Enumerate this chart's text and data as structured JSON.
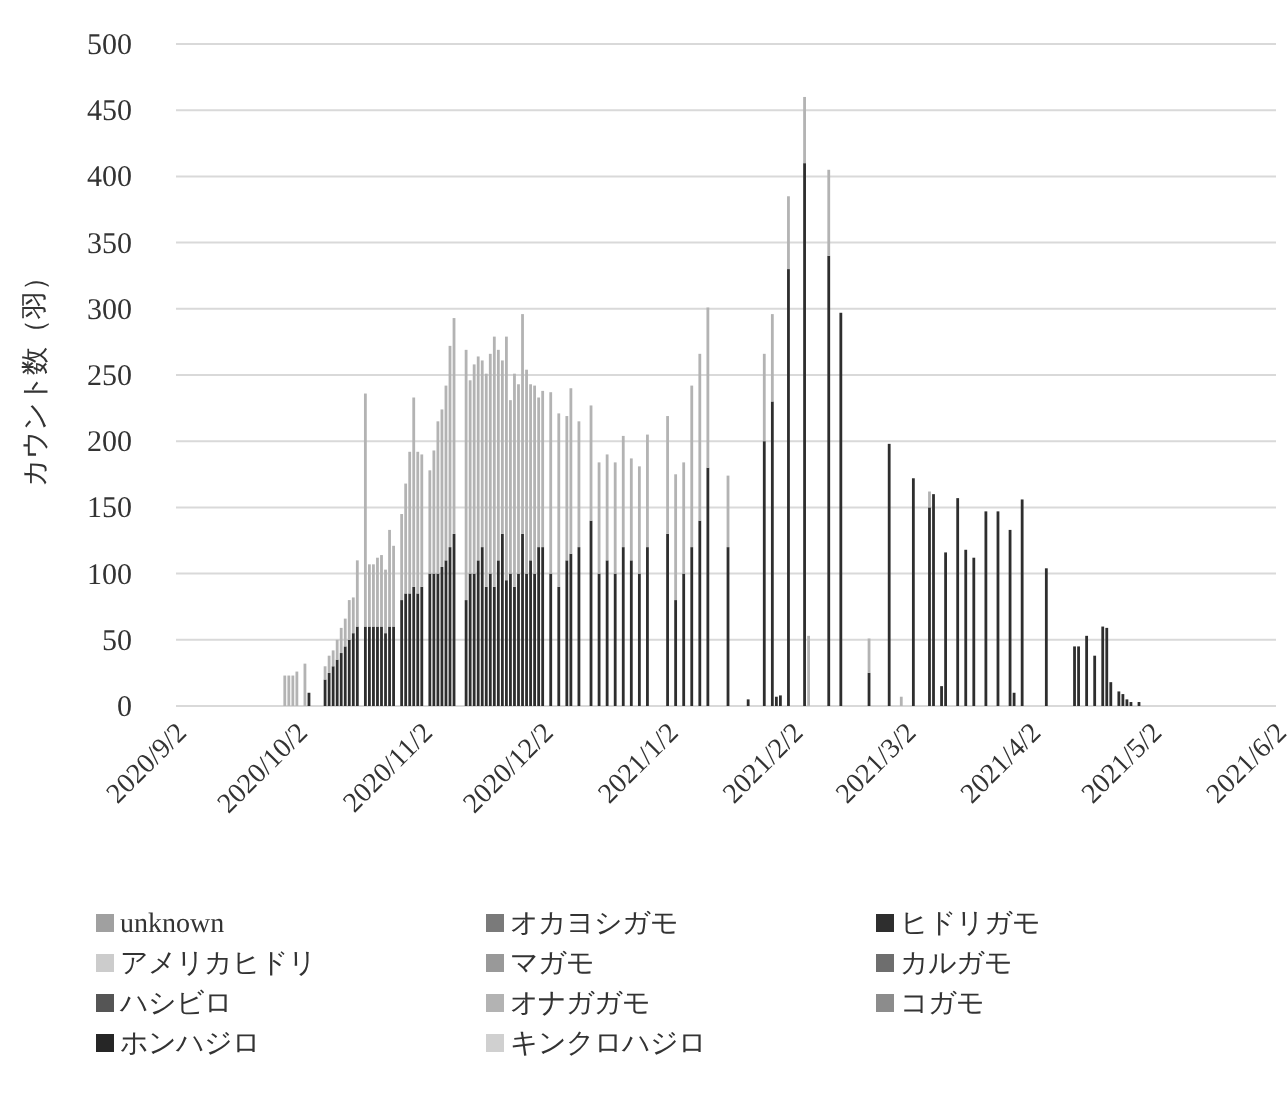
{
  "chart_data": {
    "type": "bar",
    "stacked": true,
    "ylabel": "カウント数（羽）",
    "grid": "y",
    "legend": "bottom",
    "xlim": [
      "2020-09-02",
      "2021-06-02"
    ],
    "xticks": [
      {
        "value": "2020-09-02",
        "label": "2020/9/2"
      },
      {
        "value": "2020-10-02",
        "label": "2020/10/2"
      },
      {
        "value": "2020-11-02",
        "label": "2020/11/2"
      },
      {
        "value": "2020-12-02",
        "label": "2020/12/2"
      },
      {
        "value": "2021-01-02",
        "label": "2021/1/2"
      },
      {
        "value": "2021-02-02",
        "label": "2021/2/2"
      },
      {
        "value": "2021-03-02",
        "label": "2021/3/2"
      },
      {
        "value": "2021-04-02",
        "label": "2021/4/2"
      },
      {
        "value": "2021-05-02",
        "label": "2021/5/2"
      },
      {
        "value": "2021-06-02",
        "label": "2021/6/2"
      }
    ],
    "ylim": [
      0,
      500
    ],
    "yticks": [
      0,
      50,
      100,
      150,
      200,
      250,
      300,
      350,
      400,
      450,
      500
    ],
    "x": [
      "2020-09-29",
      "2020-09-30",
      "2020-10-01",
      "2020-10-02",
      "2020-10-04",
      "2020-10-05",
      "2020-10-09",
      "2020-10-10",
      "2020-10-11",
      "2020-10-12",
      "2020-10-13",
      "2020-10-14",
      "2020-10-15",
      "2020-10-16",
      "2020-10-17",
      "2020-10-19",
      "2020-10-20",
      "2020-10-21",
      "2020-10-22",
      "2020-10-23",
      "2020-10-24",
      "2020-10-25",
      "2020-10-26",
      "2020-10-28",
      "2020-10-29",
      "2020-10-30",
      "2020-10-31",
      "2020-11-01",
      "2020-11-02",
      "2020-11-04",
      "2020-11-05",
      "2020-11-06",
      "2020-11-07",
      "2020-11-08",
      "2020-11-09",
      "2020-11-10",
      "2020-11-13",
      "2020-11-14",
      "2020-11-15",
      "2020-11-16",
      "2020-11-17",
      "2020-11-18",
      "2020-11-19",
      "2020-11-20",
      "2020-11-21",
      "2020-11-22",
      "2020-11-23",
      "2020-11-24",
      "2020-11-25",
      "2020-11-26",
      "2020-11-27",
      "2020-11-28",
      "2020-11-29",
      "2020-11-30",
      "2020-12-01",
      "2020-12-02",
      "2020-12-04",
      "2020-12-06",
      "2020-12-08",
      "2020-12-09",
      "2020-12-11",
      "2020-12-14",
      "2020-12-16",
      "2020-12-18",
      "2020-12-20",
      "2020-12-22",
      "2020-12-24",
      "2020-12-26",
      "2020-12-28",
      "2021-01-02",
      "2021-01-04",
      "2021-01-06",
      "2021-01-08",
      "2021-01-10",
      "2021-01-12",
      "2021-01-17",
      "2021-01-22",
      "2021-01-26",
      "2021-01-28",
      "2021-01-29",
      "2021-01-30",
      "2021-02-01",
      "2021-02-05",
      "2021-02-06",
      "2021-02-11",
      "2021-02-14",
      "2021-02-21",
      "2021-02-26",
      "2021-03-01",
      "2021-03-04",
      "2021-03-08",
      "2021-03-09",
      "2021-03-11",
      "2021-03-12",
      "2021-03-15",
      "2021-03-17",
      "2021-03-19",
      "2021-03-22",
      "2021-03-25",
      "2021-03-28",
      "2021-03-29",
      "2021-03-31",
      "2021-04-06",
      "2021-04-13",
      "2021-04-14",
      "2021-04-16",
      "2021-04-18",
      "2021-04-20",
      "2021-04-21",
      "2021-04-22",
      "2021-04-24",
      "2021-04-25",
      "2021-04-26",
      "2021-04-27",
      "2021-04-29"
    ],
    "series": [
      {
        "name": "unknown",
        "color": "#a0a0a0",
        "values": [
          null,
          null,
          null,
          null,
          null,
          null,
          null,
          null,
          null,
          null,
          null,
          null,
          null,
          null,
          null,
          null,
          null,
          null,
          null,
          null,
          null,
          null,
          null,
          null,
          null,
          null,
          null,
          null,
          null,
          null,
          null,
          null,
          null,
          null,
          null,
          null,
          null,
          null,
          null,
          null,
          null,
          null,
          null,
          null,
          null,
          null,
          null,
          null,
          null,
          null,
          null,
          null,
          null,
          null,
          null,
          null,
          null,
          null,
          null,
          null,
          null,
          null,
          null,
          null,
          null,
          null,
          null,
          null,
          null,
          null,
          null,
          null,
          null,
          null,
          null,
          null,
          null,
          null,
          null,
          null,
          null,
          null,
          null,
          null,
          null,
          null,
          null,
          null,
          null,
          null,
          null,
          null,
          null,
          null,
          null,
          null,
          null,
          null,
          null,
          null,
          null,
          null,
          null,
          null,
          null,
          null,
          null,
          null,
          null,
          null,
          null,
          null,
          null,
          null,
          null
        ]
      },
      {
        "name": "オカヨシガモ",
        "color": "#7a7a7a",
        "values": [
          null,
          null,
          null,
          null,
          null,
          null,
          null,
          null,
          null,
          null,
          null,
          null,
          null,
          null,
          null,
          null,
          null,
          null,
          null,
          null,
          null,
          null,
          null,
          null,
          null,
          null,
          null,
          null,
          null,
          null,
          null,
          null,
          null,
          null,
          null,
          null,
          null,
          null,
          null,
          null,
          null,
          null,
          null,
          null,
          null,
          null,
          null,
          null,
          null,
          null,
          null,
          null,
          null,
          null,
          null,
          null,
          null,
          null,
          null,
          null,
          null,
          null,
          null,
          null,
          null,
          null,
          null,
          null,
          null,
          null,
          null,
          null,
          null,
          null,
          null,
          null,
          null,
          null,
          null,
          null,
          null,
          null,
          null,
          null,
          null,
          null,
          null,
          null,
          null,
          null,
          null,
          null,
          null,
          null,
          null,
          null,
          null,
          null,
          null,
          null,
          null,
          null,
          null,
          null,
          null,
          null,
          null,
          null,
          null,
          null,
          null,
          null,
          null,
          null,
          null
        ]
      },
      {
        "name": "ヒドリガモ",
        "color": "#2e2e2e",
        "values": [
          0,
          0,
          0,
          0,
          0,
          10,
          20,
          25,
          30,
          35,
          40,
          45,
          50,
          55,
          60,
          60,
          60,
          60,
          60,
          60,
          55,
          60,
          60,
          80,
          85,
          85,
          90,
          85,
          90,
          100,
          100,
          100,
          105,
          110,
          120,
          130,
          80,
          100,
          100,
          110,
          120,
          90,
          100,
          90,
          110,
          130,
          95,
          100,
          90,
          100,
          130,
          100,
          110,
          100,
          120,
          120,
          100,
          90,
          110,
          115,
          120,
          140,
          100,
          110,
          100,
          120,
          110,
          100,
          120,
          130,
          80,
          100,
          120,
          140,
          180,
          120,
          5,
          200,
          230,
          7,
          8,
          330,
          410,
          0,
          340,
          297,
          25,
          198,
          0,
          172,
          150,
          160,
          15,
          116,
          157,
          118,
          112,
          147,
          147,
          133,
          10,
          156,
          104,
          45,
          45,
          53,
          38,
          60,
          59,
          18,
          11,
          9,
          5,
          3,
          3
        ]
      },
      {
        "name": "アメリカヒドリ",
        "color": "#cccccc",
        "values": [
          null,
          null,
          null,
          null,
          null,
          null,
          null,
          null,
          null,
          null,
          null,
          null,
          null,
          null,
          null,
          null,
          null,
          null,
          null,
          null,
          null,
          null,
          null,
          null,
          null,
          null,
          null,
          null,
          null,
          null,
          null,
          null,
          null,
          null,
          null,
          null,
          null,
          null,
          null,
          null,
          null,
          null,
          null,
          null,
          null,
          null,
          null,
          null,
          null,
          null,
          null,
          null,
          null,
          null,
          null,
          null,
          null,
          null,
          null,
          null,
          null,
          null,
          null,
          null,
          null,
          null,
          null,
          null,
          null,
          null,
          null,
          null,
          null,
          null,
          null,
          null,
          null,
          null,
          null,
          null,
          null,
          null,
          null,
          null,
          null,
          null,
          null,
          null,
          null,
          null,
          null,
          null,
          null,
          null,
          null,
          null,
          null,
          null,
          null,
          null,
          null,
          null,
          null,
          null,
          null,
          null,
          null,
          null,
          null,
          null,
          null,
          null,
          null,
          null,
          null
        ]
      },
      {
        "name": "マガモ",
        "color": "#999999",
        "values": [
          null,
          null,
          null,
          null,
          null,
          null,
          null,
          null,
          null,
          null,
          null,
          null,
          null,
          null,
          null,
          null,
          null,
          null,
          null,
          null,
          null,
          null,
          null,
          null,
          null,
          null,
          null,
          null,
          null,
          null,
          null,
          null,
          null,
          null,
          null,
          null,
          null,
          null,
          null,
          null,
          null,
          null,
          null,
          null,
          null,
          null,
          null,
          null,
          null,
          null,
          null,
          null,
          null,
          null,
          null,
          null,
          null,
          null,
          null,
          null,
          null,
          null,
          null,
          null,
          null,
          null,
          null,
          null,
          null,
          null,
          null,
          null,
          null,
          null,
          null,
          null,
          null,
          null,
          null,
          null,
          null,
          null,
          null,
          null,
          null,
          null,
          null,
          null,
          null,
          null,
          null,
          null,
          null,
          null,
          null,
          null,
          null,
          null,
          null,
          null,
          null,
          null,
          null,
          null,
          null,
          null,
          null,
          null,
          null,
          null,
          null,
          null,
          null,
          null,
          null
        ]
      },
      {
        "name": "カルガモ",
        "color": "#6e6e6e",
        "values": [
          null,
          null,
          null,
          null,
          null,
          null,
          null,
          null,
          null,
          null,
          null,
          null,
          null,
          null,
          null,
          null,
          null,
          null,
          null,
          null,
          null,
          null,
          null,
          null,
          null,
          null,
          null,
          null,
          null,
          null,
          null,
          null,
          null,
          null,
          null,
          null,
          null,
          null,
          null,
          null,
          null,
          null,
          null,
          null,
          null,
          null,
          null,
          null,
          null,
          null,
          null,
          null,
          null,
          null,
          null,
          null,
          null,
          null,
          null,
          null,
          null,
          null,
          null,
          null,
          null,
          null,
          null,
          null,
          null,
          null,
          null,
          null,
          null,
          null,
          null,
          null,
          null,
          null,
          null,
          null,
          null,
          null,
          null,
          null,
          null,
          null,
          null,
          null,
          null,
          null,
          null,
          null,
          null,
          null,
          null,
          null,
          null,
          null,
          null,
          null,
          null,
          null,
          null,
          null,
          null,
          null,
          null,
          null,
          null,
          null,
          null,
          null,
          null,
          null,
          null
        ]
      },
      {
        "name": "ハシビロ",
        "color": "#555555",
        "values": [
          null,
          null,
          null,
          null,
          null,
          null,
          null,
          null,
          null,
          null,
          null,
          null,
          null,
          null,
          null,
          null,
          null,
          null,
          null,
          null,
          null,
          null,
          null,
          null,
          null,
          null,
          null,
          null,
          null,
          null,
          null,
          null,
          null,
          null,
          null,
          null,
          null,
          null,
          null,
          null,
          null,
          null,
          null,
          null,
          null,
          null,
          null,
          null,
          null,
          null,
          null,
          null,
          null,
          null,
          null,
          null,
          null,
          null,
          null,
          null,
          null,
          null,
          null,
          null,
          null,
          null,
          null,
          null,
          null,
          null,
          null,
          null,
          null,
          null,
          null,
          null,
          null,
          null,
          null,
          null,
          null,
          null,
          null,
          null,
          null,
          null,
          null,
          null,
          null,
          null,
          null,
          null,
          null,
          null,
          null,
          null,
          null,
          null,
          null,
          null,
          null,
          null,
          null,
          null,
          null,
          null,
          null,
          null,
          null,
          null,
          null,
          null,
          null,
          null,
          null
        ]
      },
      {
        "name": "オナガガモ",
        "color": "#b3b3b3",
        "values": [
          23,
          23,
          23,
          26,
          32,
          0,
          10,
          13,
          12,
          15,
          19,
          21,
          30,
          27,
          50,
          176,
          47,
          47,
          52,
          54,
          48,
          73,
          61,
          65,
          83,
          107,
          143,
          107,
          100,
          78,
          93,
          115,
          119,
          132,
          152,
          163,
          189,
          146,
          158,
          154,
          141,
          161,
          166,
          189,
          159,
          131,
          184,
          131,
          161,
          143,
          166,
          154,
          133,
          142,
          113,
          118,
          137,
          131,
          109,
          125,
          95,
          87,
          84,
          80,
          84,
          84,
          77,
          81,
          85,
          89,
          95,
          84,
          122,
          126,
          121,
          54,
          0,
          66,
          66,
          0,
          0,
          55,
          50,
          53,
          65,
          0,
          26,
          0,
          7,
          0,
          12,
          0,
          0,
          0,
          0,
          0,
          0,
          0,
          0,
          0,
          0,
          0,
          0,
          0,
          0,
          0,
          0,
          0,
          0,
          0,
          0,
          0,
          0,
          0,
          0
        ]
      },
      {
        "name": "コガモ",
        "color": "#8c8c8c",
        "values": [
          null,
          null,
          null,
          null,
          null,
          null,
          null,
          null,
          null,
          null,
          null,
          null,
          null,
          null,
          null,
          null,
          null,
          null,
          null,
          null,
          null,
          null,
          null,
          null,
          null,
          null,
          null,
          null,
          null,
          null,
          null,
          null,
          null,
          null,
          null,
          null,
          null,
          null,
          null,
          null,
          null,
          null,
          null,
          null,
          null,
          null,
          null,
          null,
          null,
          null,
          null,
          null,
          null,
          null,
          null,
          null,
          null,
          null,
          null,
          null,
          null,
          null,
          null,
          null,
          null,
          null,
          null,
          null,
          null,
          null,
          null,
          null,
          null,
          null,
          null,
          null,
          null,
          null,
          null,
          null,
          null,
          null,
          null,
          null,
          null,
          null,
          null,
          null,
          null,
          null,
          null,
          null,
          null,
          null,
          null,
          null,
          null,
          null,
          null,
          null,
          null,
          null,
          null,
          null,
          null,
          null,
          null,
          null,
          null,
          null,
          null,
          null,
          null,
          null,
          null
        ]
      },
      {
        "name": "ホンハジロ",
        "color": "#262626",
        "values": [
          null,
          null,
          null,
          null,
          null,
          null,
          null,
          null,
          null,
          null,
          null,
          null,
          null,
          null,
          null,
          null,
          null,
          null,
          null,
          null,
          null,
          null,
          null,
          null,
          null,
          null,
          null,
          null,
          null,
          null,
          null,
          null,
          null,
          null,
          null,
          null,
          null,
          null,
          null,
          null,
          null,
          null,
          null,
          null,
          null,
          null,
          null,
          null,
          null,
          null,
          null,
          null,
          null,
          null,
          null,
          null,
          null,
          null,
          null,
          null,
          null,
          null,
          null,
          null,
          null,
          null,
          null,
          null,
          null,
          null,
          null,
          null,
          null,
          null,
          null,
          null,
          null,
          null,
          null,
          null,
          null,
          null,
          null,
          null,
          null,
          null,
          null,
          null,
          null,
          null,
          null,
          null,
          null,
          null,
          null,
          null,
          null,
          null,
          null,
          null,
          null,
          null,
          null,
          null,
          null,
          null,
          null,
          null,
          null,
          null,
          null,
          null,
          null,
          null,
          null
        ]
      },
      {
        "name": "キンクロハジロ",
        "color": "#d0d0d0",
        "values": [
          null,
          null,
          null,
          null,
          null,
          null,
          null,
          null,
          null,
          null,
          null,
          null,
          null,
          null,
          null,
          null,
          null,
          null,
          null,
          null,
          null,
          null,
          null,
          null,
          null,
          null,
          null,
          null,
          null,
          null,
          null,
          null,
          null,
          null,
          null,
          null,
          null,
          null,
          null,
          null,
          null,
          null,
          null,
          null,
          null,
          null,
          null,
          null,
          null,
          null,
          null,
          null,
          null,
          null,
          null,
          null,
          null,
          null,
          null,
          null,
          null,
          null,
          null,
          null,
          null,
          null,
          null,
          null,
          null,
          null,
          null,
          null,
          null,
          null,
          null,
          null,
          null,
          null,
          null,
          null,
          null,
          null,
          null,
          null,
          null,
          null,
          null,
          null,
          null,
          null,
          null,
          null,
          null,
          null,
          null,
          null,
          null,
          null,
          null,
          null,
          null,
          null,
          null,
          null,
          null,
          null,
          null,
          null,
          null,
          null,
          null,
          null,
          null,
          null,
          null
        ]
      }
    ]
  }
}
